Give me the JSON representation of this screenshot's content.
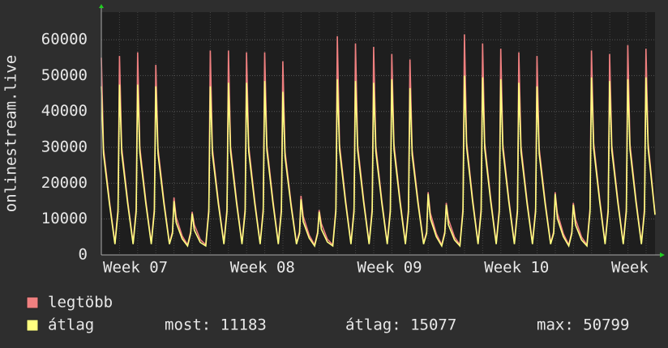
{
  "chart_data": {
    "type": "line",
    "y_label": "onlinestream.live",
    "xlim": [
      0,
      30.5
    ],
    "ylim": [
      0,
      67700
    ],
    "yticks": [
      0,
      10000,
      20000,
      30000,
      40000,
      50000,
      60000
    ],
    "xticks": [
      {
        "value": 2.1,
        "label": "Week 07"
      },
      {
        "value": 9.1,
        "label": "Week 08"
      },
      {
        "value": 16.1,
        "label": "Week 09"
      },
      {
        "value": 23.1,
        "label": "Week 10"
      },
      {
        "value": 30.1,
        "label": "Week"
      }
    ],
    "grid": true,
    "x": [
      0,
      0.12,
      0.45,
      0.75,
      0.92,
      1,
      1.12,
      1.45,
      1.75,
      1.92,
      2,
      2.12,
      2.45,
      2.75,
      2.92,
      3,
      3.12,
      3.45,
      3.75,
      3.92,
      4,
      4.12,
      4.45,
      4.75,
      4.92,
      5,
      5.12,
      5.45,
      5.75,
      5.92,
      6,
      6.12,
      6.45,
      6.75,
      6.92,
      7,
      7.12,
      7.45,
      7.75,
      7.92,
      8,
      8.12,
      8.45,
      8.75,
      8.92,
      9,
      9.12,
      9.45,
      9.75,
      9.92,
      10,
      10.12,
      10.45,
      10.75,
      10.92,
      11,
      11.12,
      11.45,
      11.75,
      11.92,
      12,
      12.12,
      12.45,
      12.75,
      12.92,
      13,
      13.12,
      13.45,
      13.75,
      13.92,
      14,
      14.12,
      14.45,
      14.75,
      14.92,
      15,
      15.12,
      15.45,
      15.75,
      15.92,
      16,
      16.12,
      16.45,
      16.75,
      16.92,
      17,
      17.12,
      17.45,
      17.75,
      17.92,
      18,
      18.12,
      18.45,
      18.75,
      18.92,
      19,
      19.12,
      19.45,
      19.75,
      19.92,
      20,
      20.12,
      20.45,
      20.75,
      20.92,
      21,
      21.12,
      21.45,
      21.75,
      21.92,
      22,
      22.12,
      22.45,
      22.75,
      22.92,
      23,
      23.12,
      23.45,
      23.75,
      23.92,
      24,
      24.12,
      24.45,
      24.75,
      24.92,
      25,
      25.12,
      25.45,
      25.75,
      25.92,
      26,
      26.12,
      26.45,
      26.75,
      26.92,
      27,
      27.12,
      27.45,
      27.75,
      27.92,
      28,
      28.12,
      28.45,
      28.75,
      28.92,
      29,
      29.12,
      29.45,
      29.75,
      29.92,
      30,
      30.12,
      30.5
    ],
    "series": [
      {
        "name": "legtöbb",
        "color": "#f08080",
        "values": [
          55000,
          29700,
          14900,
          3300,
          13000,
          55500,
          30000,
          15100,
          3300,
          13000,
          56500,
          30000,
          15100,
          3300,
          13000,
          53000,
          29700,
          14900,
          3300,
          6500,
          16000,
          10500,
          5300,
          2800,
          6500,
          12000,
          8400,
          4300,
          2800,
          13000,
          57000,
          29700,
          14900,
          3300,
          13000,
          57000,
          30300,
          15200,
          3300,
          13000,
          56500,
          30300,
          15200,
          3300,
          13000,
          56500,
          30600,
          15400,
          3300,
          13000,
          54000,
          28800,
          14500,
          3300,
          6500,
          16500,
          10800,
          5500,
          2800,
          6500,
          12500,
          8700,
          4400,
          2800,
          13000,
          61000,
          30900,
          15500,
          3300,
          13000,
          59000,
          30600,
          15400,
          3300,
          13000,
          58000,
          30300,
          15200,
          3300,
          13000,
          56000,
          30900,
          15500,
          3300,
          13000,
          54500,
          29400,
          14800,
          3300,
          6500,
          17500,
          11700,
          5900,
          2800,
          6500,
          14500,
          9900,
          5000,
          2800,
          13000,
          61500,
          31500,
          15800,
          3300,
          13000,
          59000,
          31200,
          15700,
          3300,
          13000,
          57500,
          30900,
          15500,
          3300,
          13000,
          56500,
          30300,
          15200,
          3300,
          13000,
          55500,
          29700,
          14900,
          3300,
          6500,
          17500,
          11700,
          5900,
          2800,
          6500,
          14500,
          9900,
          5000,
          2800,
          13000,
          57000,
          31200,
          15700,
          3300,
          13000,
          56000,
          30600,
          15400,
          3300,
          13000,
          58500,
          30900,
          15500,
          3300,
          13000,
          57500,
          31200,
          11500
        ]
      },
      {
        "name": "átlag",
        "color": "#ffff80",
        "values": [
          47000,
          28200,
          14100,
          3000,
          12000,
          47500,
          28500,
          14300,
          3000,
          12000,
          47500,
          28500,
          14300,
          3000,
          12000,
          47000,
          28200,
          14100,
          3000,
          6000,
          15000,
          9000,
          4500,
          2500,
          6000,
          11500,
          6900,
          3500,
          2500,
          12000,
          47000,
          28200,
          14100,
          3000,
          12000,
          48000,
          28800,
          14400,
          3000,
          12000,
          48000,
          28800,
          14400,
          3000,
          12000,
          48500,
          29100,
          14600,
          3000,
          12000,
          45500,
          27300,
          13700,
          3000,
          6000,
          15500,
          9300,
          4700,
          2500,
          6000,
          12000,
          7200,
          3600,
          2500,
          12000,
          49000,
          29400,
          14700,
          3000,
          12000,
          48500,
          29100,
          14600,
          3000,
          12000,
          48000,
          28800,
          14400,
          3000,
          12000,
          49000,
          29400,
          14700,
          3000,
          12000,
          46500,
          27900,
          14000,
          3000,
          6000,
          17000,
          10200,
          5100,
          2500,
          6000,
          14000,
          8400,
          4200,
          2500,
          12000,
          50000,
          30000,
          15000,
          3000,
          12000,
          49500,
          29700,
          14900,
          3000,
          12000,
          49000,
          29400,
          14700,
          3000,
          12000,
          48000,
          28800,
          14400,
          3000,
          12000,
          47000,
          28200,
          14100,
          3000,
          6000,
          17000,
          10200,
          5100,
          2500,
          6000,
          14000,
          8400,
          4200,
          2500,
          12000,
          49500,
          29700,
          14900,
          3000,
          12000,
          48500,
          29100,
          14600,
          3000,
          12000,
          49000,
          29400,
          14700,
          3000,
          12000,
          49500,
          29700,
          11183
        ]
      }
    ],
    "summary": [
      "most: 11183",
      "átlag: 15077",
      "max: 50799"
    ]
  }
}
